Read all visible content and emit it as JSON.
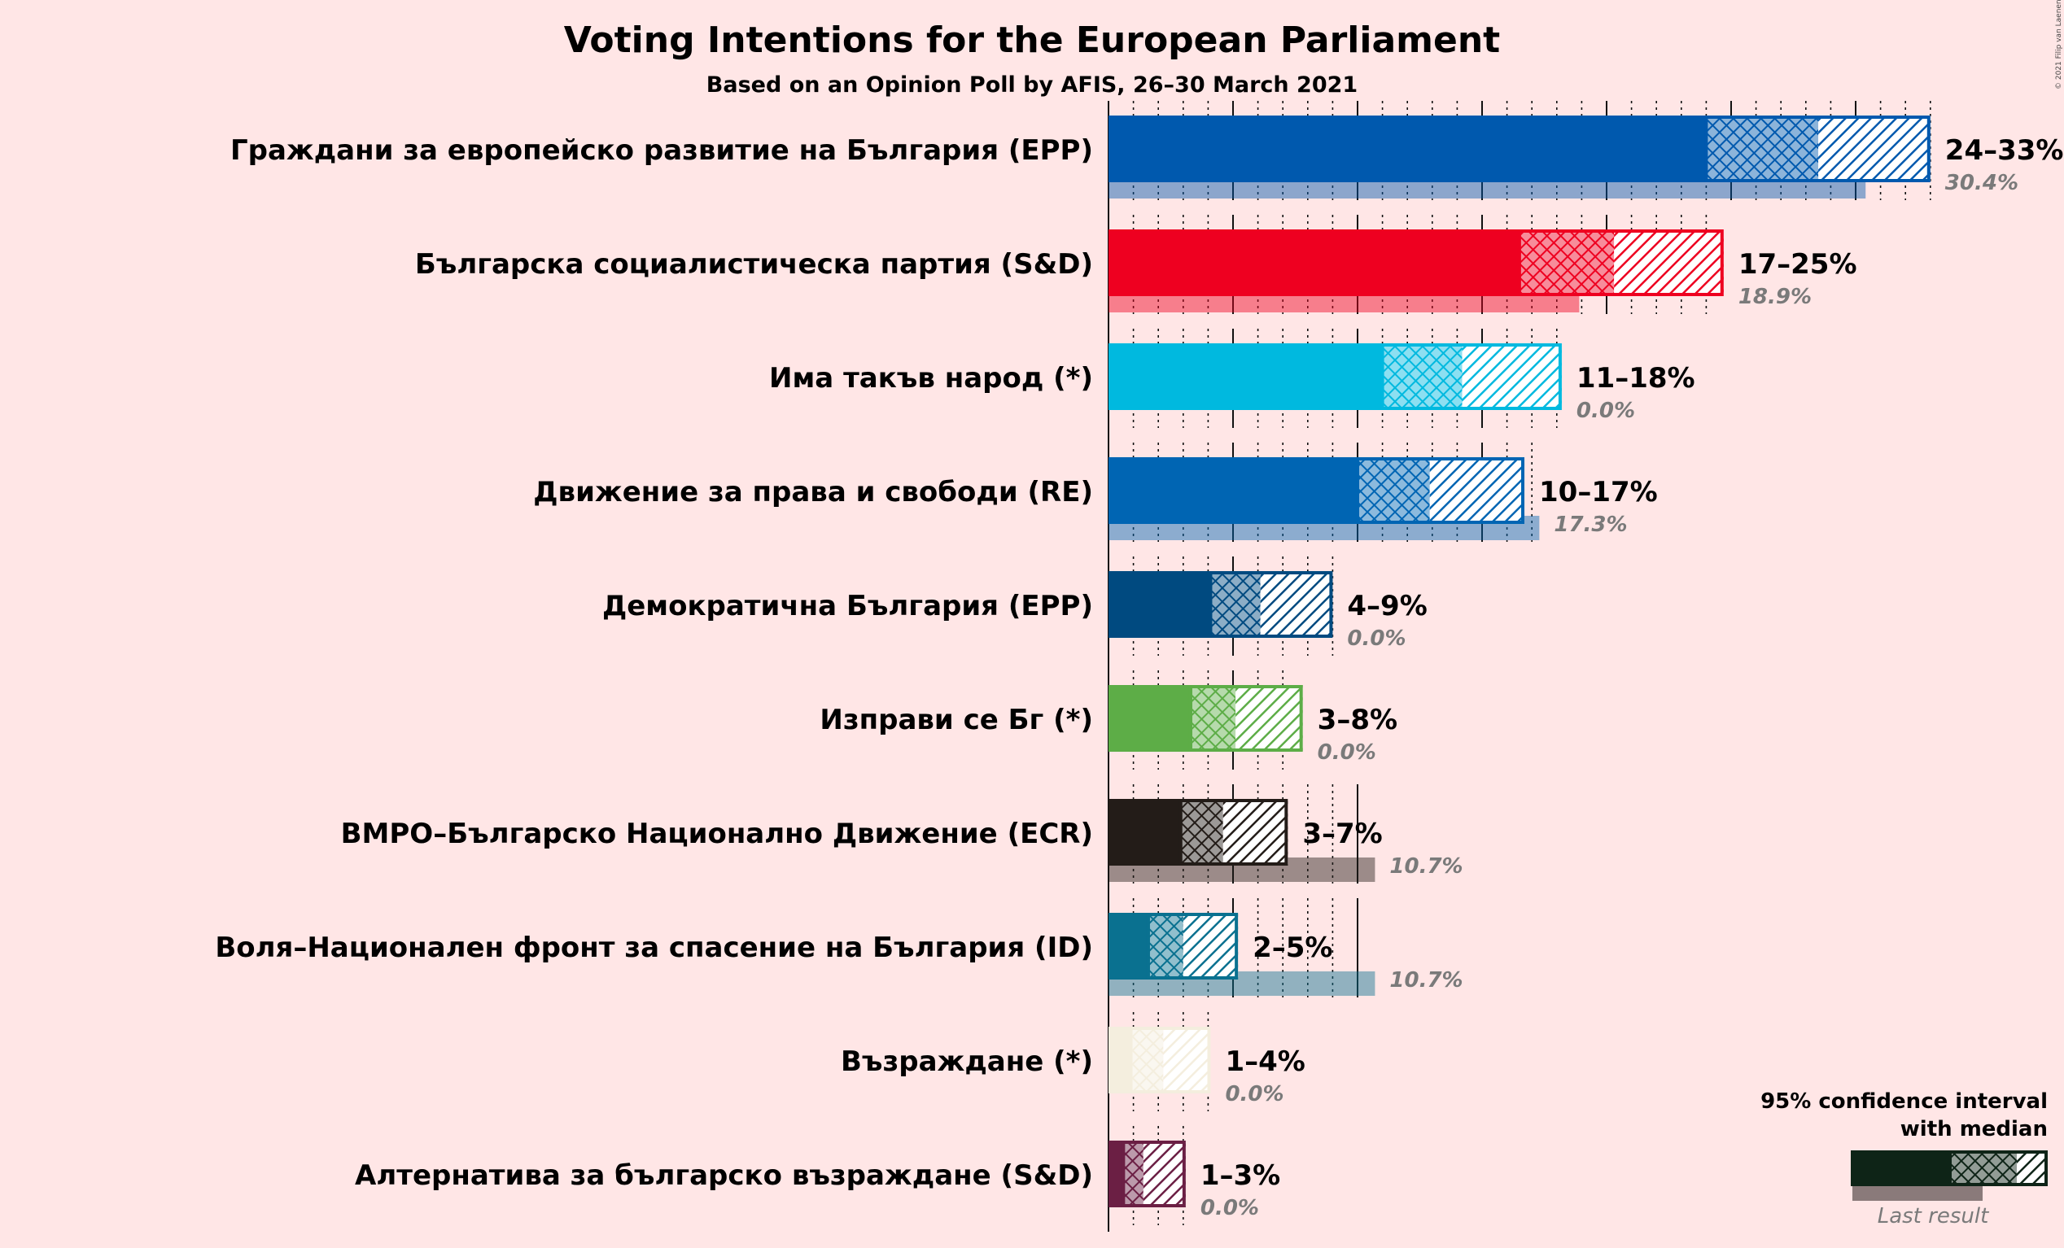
{
  "title": "Voting Intentions for the European Parliament",
  "subtitle": "Based on an Opinion Poll by AFIS, 26–30 March 2021",
  "copyright": "© 2021 Filip van Laenen",
  "legend": {
    "title_line1": "95% confidence interval",
    "title_line2": "with median",
    "last_result": "Last result"
  },
  "chart_data": {
    "type": "bar",
    "orientation": "horizontal",
    "x_unit": "%",
    "xlim": [
      0,
      33
    ],
    "parties": [
      {
        "name": "Граждани за европейско развитие на България (EPP)",
        "low": 24,
        "median": 28.5,
        "high": 33,
        "range_label": "24–33%",
        "last": 30.4,
        "last_label": "30.4%",
        "color": "#0059AE"
      },
      {
        "name": "Българска социалистическа партия (S&D)",
        "low": 16.5,
        "median": 20.3,
        "high": 24.7,
        "range_label": "17–25%",
        "last": 18.9,
        "last_label": "18.9%",
        "color": "#EE0020"
      },
      {
        "name": "Има такъв народ (*)",
        "low": 11.0,
        "median": 14.2,
        "high": 18.2,
        "range_label": "11–18%",
        "last": 0.0,
        "last_label": "0.0%",
        "color": "#00B9DF"
      },
      {
        "name": "Движение за права и свободи (RE)",
        "low": 10.0,
        "median": 12.9,
        "high": 16.7,
        "range_label": "10–17%",
        "last": 17.3,
        "last_label": "17.3%",
        "color": "#0065B3"
      },
      {
        "name": "Демократична България (EPP)",
        "low": 4.1,
        "median": 6.1,
        "high": 9.0,
        "range_label": "4–9%",
        "last": 0.0,
        "last_label": "0.0%",
        "color": "#004A80"
      },
      {
        "name": "Изправи се Бг (*)",
        "low": 3.3,
        "median": 5.1,
        "high": 7.8,
        "range_label": "3–8%",
        "last": 0.0,
        "last_label": "0.0%",
        "color": "#5DAD47"
      },
      {
        "name": "ВМРО–Българско Национално Движение (ECR)",
        "low": 2.9,
        "median": 4.6,
        "high": 7.2,
        "range_label": "3–7%",
        "last": 10.7,
        "last_label": "10.7%",
        "color": "#231C18"
      },
      {
        "name": "Воля–Национален фронт за спасение на България (ID)",
        "low": 1.6,
        "median": 3.0,
        "high": 5.2,
        "range_label": "2–5%",
        "last": 10.7,
        "last_label": "10.7%",
        "color": "#0A7190"
      },
      {
        "name": "Възраждане (*)",
        "low": 0.9,
        "median": 2.2,
        "high": 4.1,
        "range_label": "1–4%",
        "last": 0.0,
        "last_label": "0.0%",
        "color": "#F4EEDE"
      },
      {
        "name": "Алтернатива за българско възраждане (S&D)",
        "low": 0.6,
        "median": 1.4,
        "high": 3.1,
        "range_label": "1–3%",
        "last": 0.0,
        "last_label": "0.0%",
        "color": "#6B1F44"
      }
    ]
  }
}
